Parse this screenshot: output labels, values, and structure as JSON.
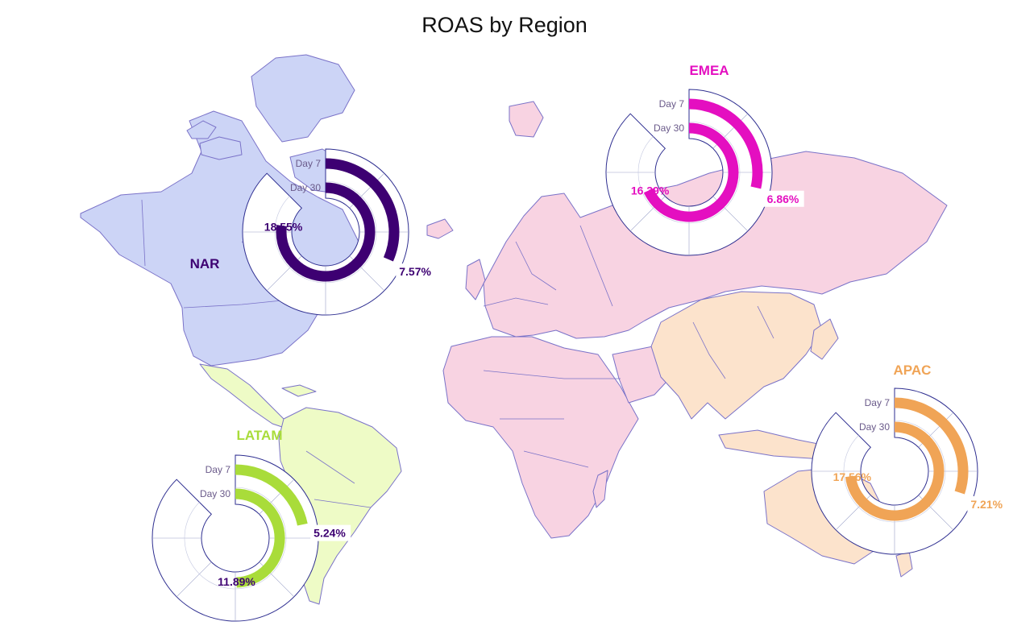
{
  "title": "ROAS by Region",
  "colors": {
    "nar_land": "#ccd4f6",
    "emea_land": "#f8d3e2",
    "apac_land": "#fce3cc",
    "latam_land": "#eefbc6",
    "border": "#7a72c8",
    "ring_outline": "#2e2e90"
  },
  "chart_data": {
    "type": "radial-bar",
    "title": "ROAS by Region",
    "ring_labels": [
      "Day 7",
      "Day 30"
    ],
    "angle_max_percent": 24,
    "regions": [
      {
        "name": "NAR",
        "color": "#3d0072",
        "label_color": "#3d0072",
        "day7": 7.57,
        "day30": 18.55,
        "day7_label": "7.57%",
        "day30_label": "18.55%"
      },
      {
        "name": "EMEA",
        "color": "#e40fc0",
        "label_color": "#e40fc0",
        "day7": 6.86,
        "day30": 16.39,
        "day7_label": "6.86%",
        "day30_label": "16.39%"
      },
      {
        "name": "APAC",
        "color": "#f0a456",
        "label_color": "#f0a456",
        "day7": 7.21,
        "day30": 17.56,
        "day7_label": "7.21%",
        "day30_label": "17.56%"
      },
      {
        "name": "LATAM",
        "color": "#a9dc3a",
        "label_color": "#a9dc3a",
        "day7": 5.24,
        "day30": 11.89,
        "day7_label": "5.24%",
        "day30_label": "11.89%"
      }
    ]
  }
}
